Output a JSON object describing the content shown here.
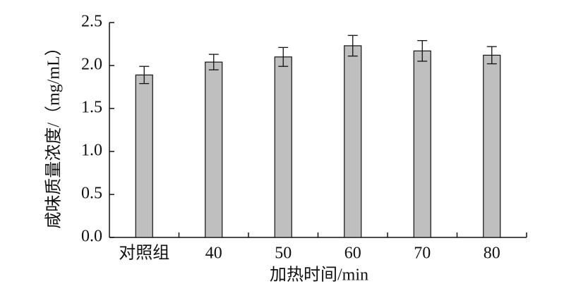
{
  "chart_data": {
    "type": "bar",
    "x_label": "加热时间/min",
    "y_label": "咸味质量浓度/（mg/mL）",
    "categories": [
      "对照组",
      "40",
      "50",
      "60",
      "70",
      "80"
    ],
    "values": [
      1.89,
      2.04,
      2.1,
      2.23,
      2.17,
      2.12
    ],
    "errors": [
      0.1,
      0.09,
      0.11,
      0.12,
      0.12,
      0.1
    ],
    "color": "#bfbfbf",
    "ylim": [
      0,
      2.5
    ],
    "yticks": [
      {
        "value": 0,
        "label": "0.0"
      },
      0.5,
      {
        "value": 1,
        "label": "1.0"
      },
      1.5,
      {
        "value": 2,
        "label": "2.0"
      },
      2.5
    ],
    "grid": false
  }
}
